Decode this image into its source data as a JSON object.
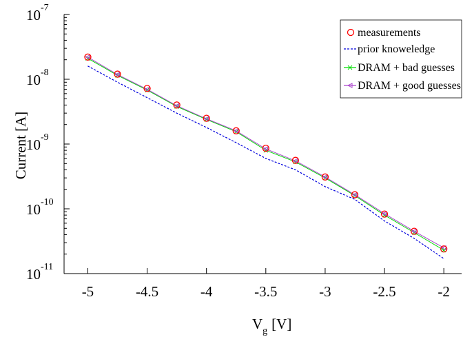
{
  "chart_data": {
    "type": "line",
    "xlabel": "V",
    "xlabel_subscript": "g",
    "xlabel_unit": "[V]",
    "ylabel": "Current [A]",
    "yscale": "log",
    "xlim": [
      -5.2,
      -1.85
    ],
    "ylim": [
      1e-11,
      1e-07
    ],
    "x_ticks": [
      -5,
      -4.5,
      -4,
      -3.5,
      -3,
      -2.5,
      -2
    ],
    "x_tick_labels": [
      "-5",
      "-4.5",
      "-4",
      "-3.5",
      "-3",
      "-2.5",
      "-2"
    ],
    "y_ticks": [
      {
        "base": "10",
        "exp": "-11",
        "value": 1e-11
      },
      {
        "base": "10",
        "exp": "-10",
        "value": 1e-10
      },
      {
        "base": "10",
        "exp": "-9",
        "value": 1e-09
      },
      {
        "base": "10",
        "exp": "-8",
        "value": 1e-08
      },
      {
        "base": "10",
        "exp": "-7",
        "value": 1e-07
      }
    ],
    "legend_position": "top-right",
    "x": [
      -5,
      -4.75,
      -4.5,
      -4.25,
      -4,
      -3.75,
      -3.5,
      -3.25,
      -3,
      -2.75,
      -2.5,
      -2.25,
      -2
    ],
    "series": [
      {
        "name": "measurements",
        "style": "marker",
        "marker": "circle",
        "color": "#ff0000",
        "values": [
          2.2e-08,
          1.2e-08,
          7.2e-09,
          4e-09,
          2.5e-09,
          1.6e-09,
          8.6e-10,
          5.6e-10,
          3.1e-10,
          1.65e-10,
          8.3e-11,
          4.5e-11,
          2.4e-11
        ]
      },
      {
        "name": "prior knoweledge",
        "style": "dashed",
        "color": "#0000dd",
        "values": [
          1.6e-08,
          9e-09,
          5.2e-09,
          3e-09,
          1.8e-09,
          1.05e-09,
          6e-10,
          4e-10,
          2.2e-10,
          1.4e-10,
          6.5e-11,
          3.5e-11,
          1.7e-11
        ]
      },
      {
        "name": "DRAM + bad guesses",
        "style": "solid",
        "marker": "x",
        "color": "#00dd00",
        "values": [
          2.1e-08,
          1.15e-08,
          6.8e-09,
          3.8e-09,
          2.4e-09,
          1.55e-09,
          8e-10,
          5.3e-10,
          3e-10,
          1.6e-10,
          8e-11,
          4.3e-11,
          2.3e-11
        ]
      },
      {
        "name": "DRAM + good guesses",
        "style": "solid",
        "marker": "triangle-left",
        "color": "#aa44cc",
        "values": [
          2.2e-08,
          1.18e-08,
          7e-09,
          3.9e-09,
          2.45e-09,
          1.6e-09,
          8.4e-10,
          5.5e-10,
          3.1e-10,
          1.65e-10,
          8.4e-11,
          4.5e-11,
          2.5e-11
        ]
      }
    ]
  }
}
